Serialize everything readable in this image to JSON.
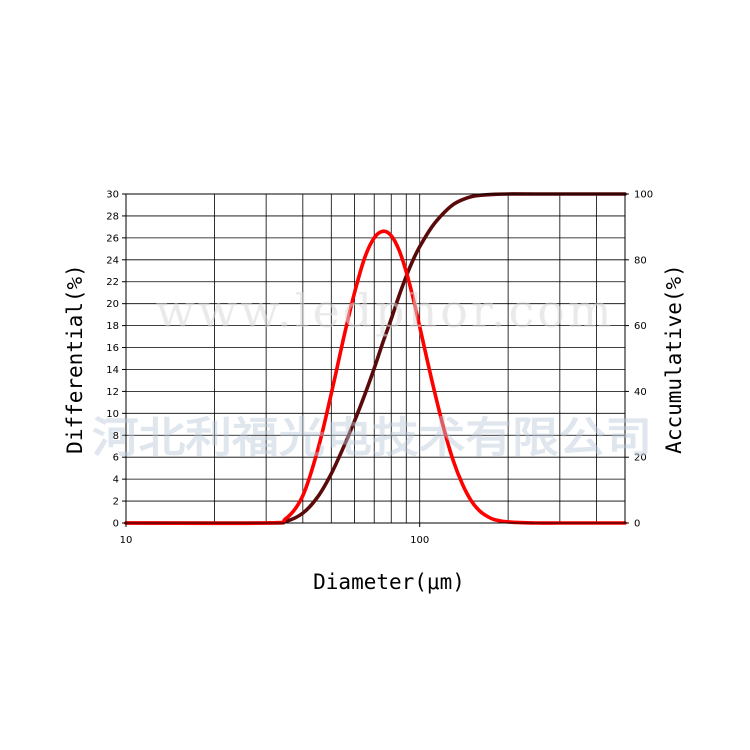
{
  "chart_data": {
    "type": "line",
    "xlabel": "Diameter(μm)",
    "ylabel_left": "Differential(%)",
    "ylabel_right": "Accumulative(%)",
    "x_scale": "log",
    "xlim": [
      10,
      500
    ],
    "ylim_left": [
      0,
      30
    ],
    "ylim_right": [
      0,
      100
    ],
    "x_tick_labels": [
      "10",
      "100"
    ],
    "x_gridlines": [
      20,
      30,
      40,
      50,
      60,
      70,
      80,
      90,
      100,
      200,
      300,
      400
    ],
    "y_left_ticks": [
      "0",
      "2",
      "4",
      "6",
      "8",
      "10",
      "12",
      "14",
      "16",
      "18",
      "20",
      "22",
      "24",
      "26",
      "28",
      "30"
    ],
    "y_right_ticks": [
      "0",
      "20",
      "40",
      "60",
      "80",
      "100"
    ],
    "grid": true,
    "series": [
      {
        "axis": "left",
        "color": "#ff0000",
        "x": [
          10,
          30,
          35,
          40,
          45,
          50,
          55,
          60,
          65,
          70,
          75,
          80,
          85,
          90,
          95,
          100,
          110,
          120,
          130,
          140,
          150,
          160,
          170,
          180,
          200,
          250,
          300,
          500
        ],
        "values": [
          0,
          0,
          0.4,
          2.5,
          6.7,
          11.8,
          16.8,
          21.0,
          24.2,
          26.0,
          26.6,
          26.2,
          24.9,
          22.9,
          20.5,
          17.9,
          13.0,
          8.9,
          5.7,
          3.5,
          2.0,
          1.1,
          0.6,
          0.3,
          0.1,
          0,
          0,
          0
        ]
      },
      {
        "axis": "right",
        "color": "#5a0a0a",
        "x": [
          10,
          30,
          35,
          40,
          45,
          50,
          55,
          60,
          65,
          70,
          75,
          80,
          85,
          90,
          95,
          100,
          110,
          120,
          130,
          140,
          150,
          160,
          180,
          200,
          250,
          500
        ],
        "values": [
          0,
          0,
          0.5,
          3,
          8,
          15,
          23,
          31,
          39,
          47,
          55,
          62,
          69,
          75,
          80,
          84,
          90,
          94,
          96.8,
          98.3,
          99.2,
          99.6,
          99.9,
          100,
          100,
          100
        ]
      }
    ]
  },
  "watermark": {
    "url": "www.ledphor.com",
    "company": "河北利福光电技术有限公司"
  }
}
